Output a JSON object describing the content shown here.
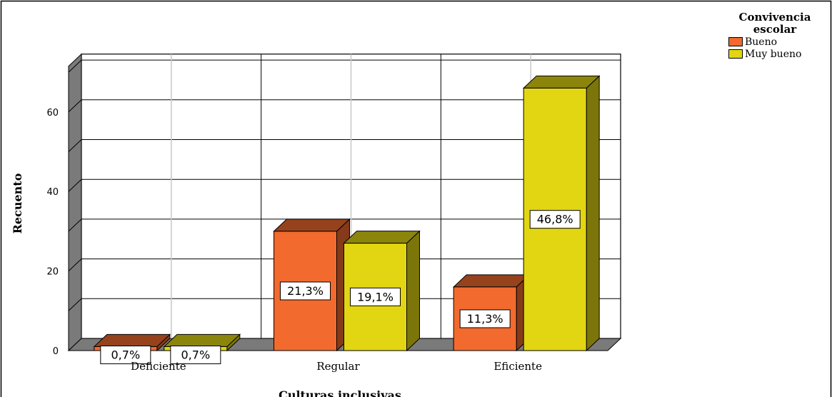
{
  "chart_data": {
    "type": "bar",
    "xlabel": "Culturas inclusivas",
    "ylabel": "Recuento",
    "ylim": [
      0,
      72
    ],
    "yticks": [
      0,
      20,
      40,
      60
    ],
    "categories": [
      "Deficiente",
      "Regular",
      "Eficiente"
    ],
    "legend_title": "Convivencia escolar",
    "legend_position": "top-right",
    "grid": true,
    "series": [
      {
        "name": "Bueno",
        "color": "#f26a2e",
        "values": [
          1,
          30,
          16
        ],
        "labels": [
          "0,7%",
          "21,3%",
          "11,3%"
        ]
      },
      {
        "name": "Muy bueno",
        "color": "#e2d613",
        "values": [
          1,
          27,
          66
        ],
        "labels": [
          "0,7%",
          "19,1%",
          "46,8%"
        ]
      }
    ]
  }
}
